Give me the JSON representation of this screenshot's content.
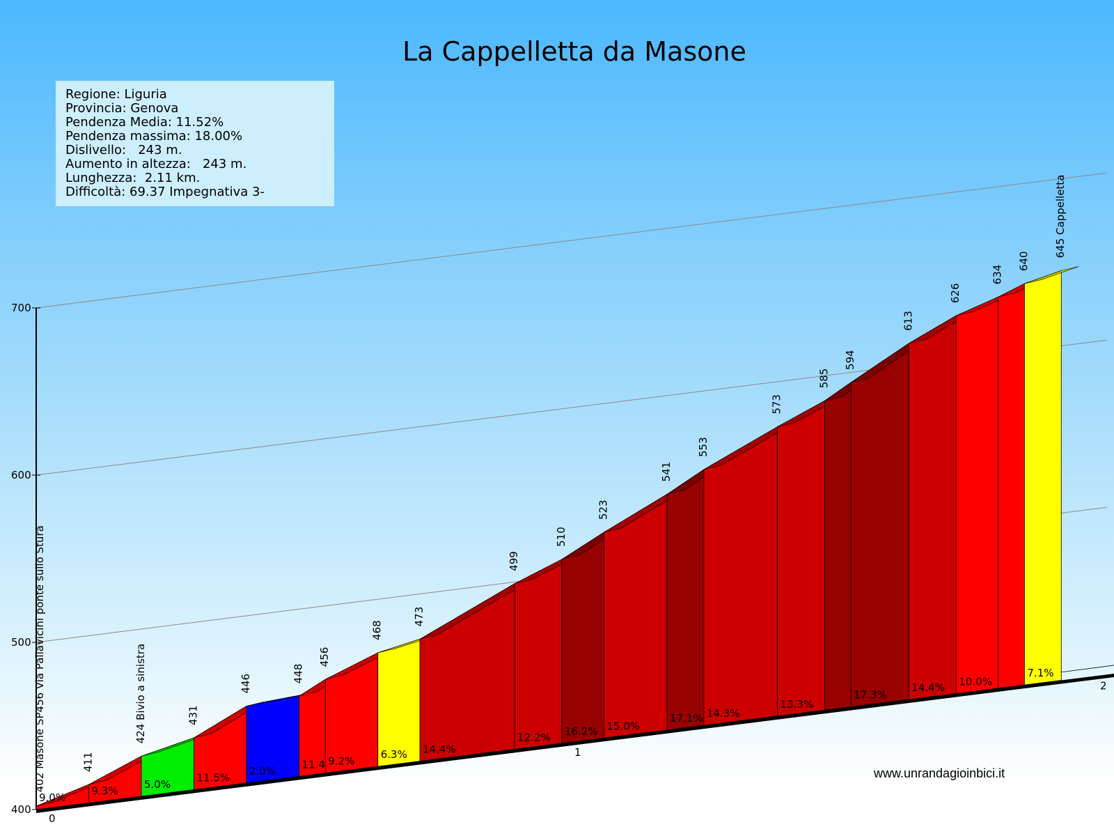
{
  "title": "La Cappelletta da Masone",
  "info": [
    "Regione: Liguria",
    "Provincia: Genova",
    "Pendenza Media: 11.52%",
    "Pendenza massima: 18.00%",
    "Dislivello:   243 m.",
    "Aumento in altezza:   243 m.",
    "Lunghezza:  2.11 km.",
    "Difficoltà: 69.37 Impegnativa 3-"
  ],
  "website": "www.unrandagioinbici.it",
  "colors": {
    "red": "#ff0000",
    "darkred": "#cc0000",
    "maroon": "#990000",
    "yellow": "#ffff00",
    "green": "#00ee00",
    "blue": "#0000ff"
  },
  "chart_data": {
    "type": "area",
    "title": "La Cappelletta da Masone",
    "xlabel": "",
    "ylabel": "",
    "ylim": [
      400,
      700
    ],
    "y_ticks": [
      "400",
      "500",
      "600",
      "700"
    ],
    "x_ticks": [
      "0",
      "1",
      "2"
    ],
    "grid": true,
    "points": [
      {
        "km": 0.0,
        "alt": 402,
        "label": "402 Masone SP456 Via Pallavicini ponte sullo Stura"
      },
      {
        "km": 0.1,
        "alt": 411,
        "label": "411"
      },
      {
        "km": 0.2,
        "alt": 424,
        "label": "424 Bivio a sinistra"
      },
      {
        "km": 0.3,
        "alt": 431,
        "label": "431"
      },
      {
        "km": 0.4,
        "alt": 446,
        "label": "446"
      },
      {
        "km": 0.5,
        "alt": 448,
        "label": "448"
      },
      {
        "km": 0.55,
        "alt": 456,
        "label": "456"
      },
      {
        "km": 0.65,
        "alt": 468,
        "label": "468"
      },
      {
        "km": 0.73,
        "alt": 473,
        "label": "473"
      },
      {
        "km": 0.91,
        "alt": 499,
        "label": "499"
      },
      {
        "km": 1.0,
        "alt": 510,
        "label": "510"
      },
      {
        "km": 1.08,
        "alt": 523,
        "label": "523"
      },
      {
        "km": 1.2,
        "alt": 541,
        "label": "541"
      },
      {
        "km": 1.27,
        "alt": 553,
        "label": "553"
      },
      {
        "km": 1.41,
        "alt": 573,
        "label": "573"
      },
      {
        "km": 1.5,
        "alt": 585,
        "label": "585"
      },
      {
        "km": 1.55,
        "alt": 594,
        "label": "594"
      },
      {
        "km": 1.66,
        "alt": 613,
        "label": "613"
      },
      {
        "km": 1.75,
        "alt": 626,
        "label": "626"
      },
      {
        "km": 1.83,
        "alt": 634,
        "label": "634"
      },
      {
        "km": 1.88,
        "alt": 640,
        "label": "640"
      },
      {
        "km": 1.95,
        "alt": 645,
        "label": "645 Cappelletta"
      }
    ],
    "segments": [
      {
        "grade": "9.0%",
        "color": "red"
      },
      {
        "grade": "9.3%",
        "color": "red"
      },
      {
        "grade": "5.0%",
        "color": "green"
      },
      {
        "grade": "11.5%",
        "color": "red"
      },
      {
        "grade": "2.0%",
        "color": "blue"
      },
      {
        "grade": "11.4%",
        "color": "red"
      },
      {
        "grade": "9.2%",
        "color": "red"
      },
      {
        "grade": "6.3%",
        "color": "yellow"
      },
      {
        "grade": "14.4%",
        "color": "darkred"
      },
      {
        "grade": "12.2%",
        "color": "darkred"
      },
      {
        "grade": "16.2%",
        "color": "maroon"
      },
      {
        "grade": "15.0%",
        "color": "darkred"
      },
      {
        "grade": "17.1%",
        "color": "maroon"
      },
      {
        "grade": "14.3%",
        "color": "darkred"
      },
      {
        "grade": "13.3%",
        "color": "darkred"
      },
      {
        "grade": "",
        "color": "maroon"
      },
      {
        "grade": "17.3%",
        "color": "maroon"
      },
      {
        "grade": "14.4%",
        "color": "darkred"
      },
      {
        "grade": "10.0%",
        "color": "red"
      },
      {
        "grade": "",
        "color": "red"
      },
      {
        "grade": "7.1%",
        "color": "yellow"
      }
    ]
  }
}
